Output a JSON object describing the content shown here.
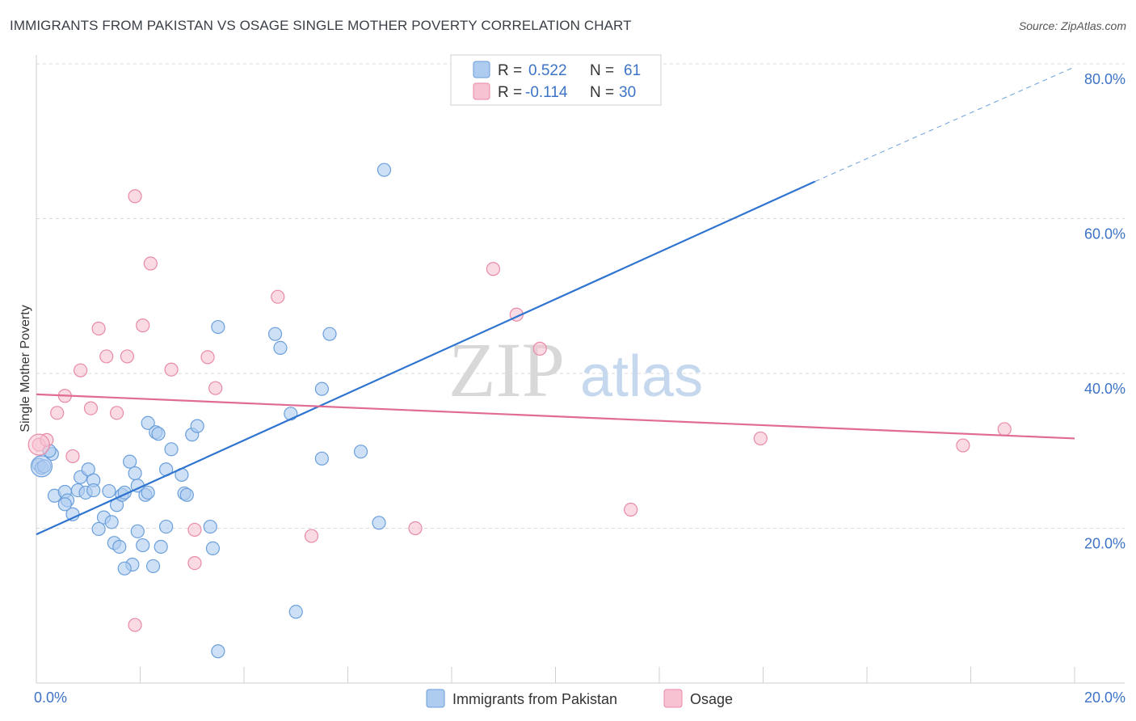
{
  "title": "IMMIGRANTS FROM PAKISTAN VS OSAGE SINGLE MOTHER POVERTY CORRELATION CHART",
  "source": "Source: ZipAtlas.com",
  "watermark": {
    "zip": "ZIP",
    "atlas": "atlas"
  },
  "colors": {
    "blue_fill": "#aecbf0",
    "blue_stroke": "#6a9fdb",
    "blue_line": "#2f74d0",
    "pink_fill": "#f7c3d2",
    "pink_stroke": "#e88aa6",
    "pink_line": "#e06c93",
    "axis_text": "#3d73c6",
    "grid": "#d9d9d9"
  },
  "legend": {
    "r_label": "R =",
    "n_label": "N =",
    "rows": [
      {
        "r": "0.522",
        "n": "61"
      },
      {
        "r": "-0.114",
        "n": "30"
      }
    ]
  },
  "chart_data": {
    "type": "scatter",
    "xlabel": "",
    "ylabel": "Single Mother Poverty",
    "xlim": [
      0,
      20
    ],
    "ylim": [
      0,
      80
    ],
    "x_tick_labels": [
      "0.0%",
      "20.0%"
    ],
    "y_tick_labels": [
      "20.0%",
      "40.0%",
      "60.0%",
      "80.0%"
    ],
    "y_ticks": [
      20,
      40,
      60,
      80
    ],
    "grid": true,
    "legend_position": "top-center",
    "series": [
      {
        "name": "Immigrants from Pakistan",
        "color": "#6a9fdb",
        "trend": {
          "x": [
            0,
            15
          ],
          "y": [
            19.2,
            64.8
          ],
          "dashed_to": [
            20,
            79.6
          ]
        },
        "points": [
          [
            0.05,
            28.2
          ],
          [
            0.1,
            27.8
          ],
          [
            0.3,
            29.6
          ],
          [
            0.35,
            24.2
          ],
          [
            0.55,
            24.7
          ],
          [
            0.6,
            23.6
          ],
          [
            0.8,
            24.9
          ],
          [
            0.85,
            26.6
          ],
          [
            0.95,
            24.6
          ],
          [
            1.0,
            27.6
          ],
          [
            1.1,
            26.2
          ],
          [
            0.55,
            23.1
          ],
          [
            0.7,
            21.8
          ],
          [
            1.3,
            21.4
          ],
          [
            1.4,
            24.8
          ],
          [
            1.55,
            23.0
          ],
          [
            1.65,
            24.3
          ],
          [
            1.45,
            20.8
          ],
          [
            1.7,
            24.6
          ],
          [
            1.8,
            28.6
          ],
          [
            1.9,
            27.1
          ],
          [
            1.95,
            25.5
          ],
          [
            2.1,
            24.3
          ],
          [
            2.15,
            33.6
          ],
          [
            2.3,
            32.4
          ],
          [
            2.35,
            32.2
          ],
          [
            2.5,
            27.6
          ],
          [
            2.6,
            30.2
          ],
          [
            2.8,
            26.9
          ],
          [
            2.85,
            24.5
          ],
          [
            2.9,
            24.3
          ],
          [
            3.0,
            32.1
          ],
          [
            3.1,
            33.2
          ],
          [
            1.2,
            19.9
          ],
          [
            1.5,
            18.1
          ],
          [
            1.6,
            17.6
          ],
          [
            1.95,
            19.6
          ],
          [
            2.05,
            17.8
          ],
          [
            2.4,
            17.6
          ],
          [
            2.5,
            20.2
          ],
          [
            3.35,
            20.2
          ],
          [
            3.4,
            17.4
          ],
          [
            1.85,
            15.3
          ],
          [
            1.7,
            14.8
          ],
          [
            2.25,
            15.1
          ],
          [
            3.5,
            4.1
          ],
          [
            3.5,
            46.0
          ],
          [
            4.6,
            45.1
          ],
          [
            4.7,
            43.3
          ],
          [
            5.65,
            45.1
          ],
          [
            4.9,
            34.8
          ],
          [
            5.5,
            38.0
          ],
          [
            5.5,
            29.0
          ],
          [
            6.25,
            29.9
          ],
          [
            6.6,
            20.7
          ],
          [
            6.7,
            66.3
          ],
          [
            5.0,
            9.2
          ],
          [
            0.15,
            28.0
          ],
          [
            1.1,
            24.9
          ],
          [
            2.15,
            24.6
          ],
          [
            0.25,
            30.0
          ]
        ]
      },
      {
        "name": "Osage",
        "color": "#e88aa6",
        "trend": {
          "x": [
            0,
            20
          ],
          "y": [
            37.3,
            31.6
          ]
        },
        "points": [
          [
            0.05,
            30.8
          ],
          [
            0.2,
            31.4
          ],
          [
            0.4,
            34.9
          ],
          [
            0.55,
            37.1
          ],
          [
            0.85,
            40.4
          ],
          [
            1.05,
            35.5
          ],
          [
            1.2,
            45.8
          ],
          [
            1.35,
            42.2
          ],
          [
            1.55,
            34.9
          ],
          [
            1.75,
            42.2
          ],
          [
            1.9,
            62.9
          ],
          [
            2.05,
            46.2
          ],
          [
            2.2,
            54.2
          ],
          [
            2.6,
            40.5
          ],
          [
            3.3,
            42.1
          ],
          [
            3.45,
            38.1
          ],
          [
            4.65,
            49.9
          ],
          [
            0.7,
            29.3
          ],
          [
            3.05,
            15.5
          ],
          [
            3.05,
            19.8
          ],
          [
            5.3,
            19.0
          ],
          [
            7.3,
            20.0
          ],
          [
            1.9,
            7.5
          ],
          [
            8.8,
            53.5
          ],
          [
            9.25,
            47.6
          ],
          [
            9.7,
            43.2
          ],
          [
            11.45,
            22.4
          ],
          [
            13.95,
            31.6
          ],
          [
            17.85,
            30.7
          ],
          [
            18.65,
            32.8
          ]
        ]
      }
    ]
  }
}
